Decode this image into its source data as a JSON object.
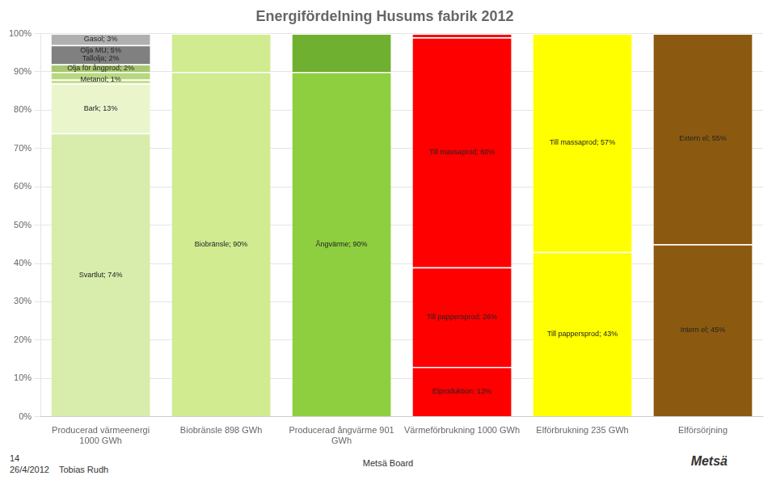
{
  "chart_data": {
    "type": "bar",
    "title": "Energifördelning Husums fabrik 2012",
    "stacked": true,
    "grid": true,
    "categories": [
      "Producerad värmeenergi\n1000 GWh",
      "Biobränsle 898 GWh",
      "Producerad ångvärme 901\nGWh",
      "Värmeförbrukning 1000 GWh",
      "Elförbrukning 235 GWh",
      "Elförsörjning"
    ],
    "series": [
      {
        "values": [
          74,
          90,
          90,
          13,
          43,
          45
        ],
        "colors": [
          "#d8edac",
          "#d0eb90",
          "#8ecf40",
          "#ff0000",
          "#ffff00",
          "#8b5a10"
        ]
      },
      {
        "values": [
          13,
          10,
          10,
          26,
          57,
          55
        ],
        "colors": [
          "#eaf5cc",
          "#d0eb90",
          "#70b030",
          "#ff0000",
          "#ffff00",
          "#8b5a10"
        ]
      },
      {
        "values": [
          1,
          null,
          null,
          60,
          null,
          null
        ],
        "colors": [
          "#c5e090",
          null,
          null,
          "#ff0000",
          null,
          null
        ]
      },
      {
        "values": [
          2,
          null,
          null,
          1,
          null,
          null
        ],
        "colors": [
          "#b8d880",
          null,
          null,
          "#ff0000",
          null,
          null
        ]
      },
      {
        "values": [
          2,
          null,
          null,
          null,
          null,
          null
        ],
        "colors": [
          "#a8c870",
          null,
          null,
          null,
          null,
          null
        ]
      },
      {
        "values": [
          5,
          null,
          null,
          null,
          null,
          null
        ],
        "colors": [
          "#808080",
          null,
          null,
          null,
          null,
          null
        ]
      },
      {
        "values": [
          3,
          null,
          null,
          null,
          null,
          null
        ],
        "colors": [
          "#b0b0b0",
          null,
          null,
          null,
          null,
          null
        ]
      }
    ],
    "ylim": [
      0,
      100
    ],
    "yticks": [
      {
        "value": 0,
        "label": "0%"
      },
      {
        "value": 10,
        "label": "10%"
      },
      {
        "value": 20,
        "label": "20%"
      },
      {
        "value": 30,
        "label": "30%"
      },
      {
        "value": 40,
        "label": "40%"
      },
      {
        "value": 50,
        "label": "50%"
      },
      {
        "value": 60,
        "label": "60%"
      },
      {
        "value": 70,
        "label": "70%"
      },
      {
        "value": 80,
        "label": "80%"
      },
      {
        "value": 90,
        "label": "90%"
      },
      {
        "value": 100,
        "label": "100%"
      }
    ],
    "annotations": [
      {
        "text": "Svartlut; 74%",
        "x": "Producerad värmeenergi\n1000 GWh",
        "y": 37
      },
      {
        "text": "Bark; 13%",
        "x": "Producerad värmeenergi\n1000 GWh",
        "y": 80.5
      },
      {
        "text": "Metanol; 1%",
        "x": "Producerad värmeenergi\n1000 GWh",
        "y": 88
      },
      {
        "text": "Olja för ångprod; 2%",
        "x": "Producerad värmeenergi\n1000 GWh",
        "y": 91
      },
      {
        "text": "Tallolja; 2%",
        "x": "Producerad värmeenergi\n1000 GWh",
        "y": 93.5
      },
      {
        "text": "Olja MU; 5%",
        "x": "Producerad värmeenergi\n1000 GWh",
        "y": 95.5
      },
      {
        "text": "Gasol; 3%",
        "x": "Producerad värmeenergi\n1000 GWh",
        "y": 98.5
      },
      {
        "text": "Biobränsle; 90%",
        "x": "Biobränsle 898 GWh",
        "y": 45
      },
      {
        "text": "Ångvärme; 90%",
        "x": "Producerad ångvärme 901\nGWh",
        "y": 45
      },
      {
        "text": "Elproduktion; 13%",
        "x": "Värmeförbrukning 1000 GWh",
        "y": 6.5
      },
      {
        "text": "Till pappersprod; 26%",
        "x": "Värmeförbrukning 1000 GWh",
        "y": 26
      },
      {
        "text": "Till massaprod; 60%",
        "x": "Värmeförbrukning 1000 GWh",
        "y": 69
      },
      {
        "text": "Till pappersprod; 43%",
        "x": "Elförbrukning 235 GWh",
        "y": 21.5
      },
      {
        "text": "Till massaprod; 57%",
        "x": "Elförbrukning 235 GWh",
        "y": 71.5
      },
      {
        "text": "Intern el; 45%",
        "x": "Elförsörjning",
        "y": 22.5
      },
      {
        "text": "Extern el; 55%",
        "x": "Elförsörjning",
        "y": 72.5
      }
    ],
    "footer_left": [
      "14",
      "26/4/2012    Tobias Rudh"
    ],
    "footer_center": "Metsä Board",
    "footer_right": "Metsä"
  }
}
